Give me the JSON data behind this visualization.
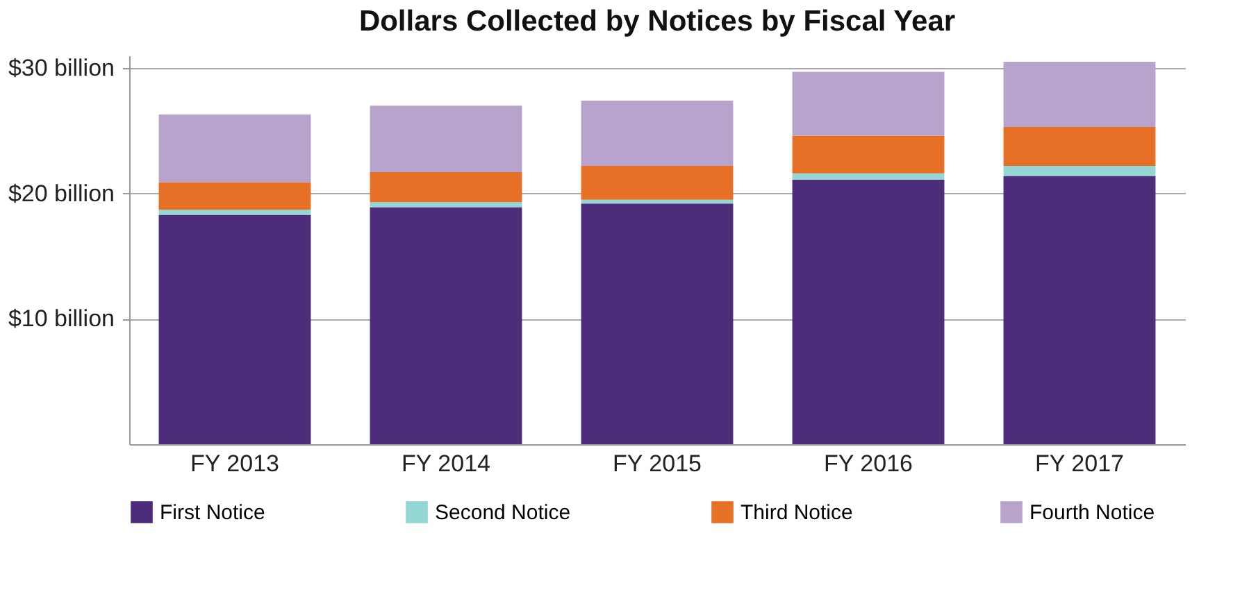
{
  "chart_data": {
    "type": "bar",
    "title": "Dollars Collected by Notices by Fiscal Year",
    "stacked": true,
    "categories": [
      "FY 2013",
      "FY 2014",
      "FY 2015",
      "FY 2016",
      "FY 2017"
    ],
    "series": [
      {
        "name": "First Notice",
        "color": "#4d2c7a",
        "values": [
          18.3,
          18.9,
          19.2,
          21.1,
          21.4
        ]
      },
      {
        "name": "Second Notice",
        "color": "#93d6d3",
        "values": [
          0.4,
          0.4,
          0.3,
          0.5,
          0.8
        ]
      },
      {
        "name": "Third  Notice",
        "color": "#e67025",
        "values": [
          2.2,
          2.4,
          2.7,
          3.0,
          3.1
        ]
      },
      {
        "name": "Fourth Notice",
        "color": "#b8a3cc",
        "values": [
          5.4,
          5.3,
          5.2,
          5.1,
          5.2
        ]
      }
    ],
    "ylim": [
      0,
      31
    ],
    "yticks": [
      {
        "value": 10,
        "label": "$10 billion"
      },
      {
        "value": 20,
        "label": "$20 billion"
      },
      {
        "value": 30,
        "label": "$30 billion"
      }
    ],
    "grid": "y",
    "legend": "bottom"
  }
}
